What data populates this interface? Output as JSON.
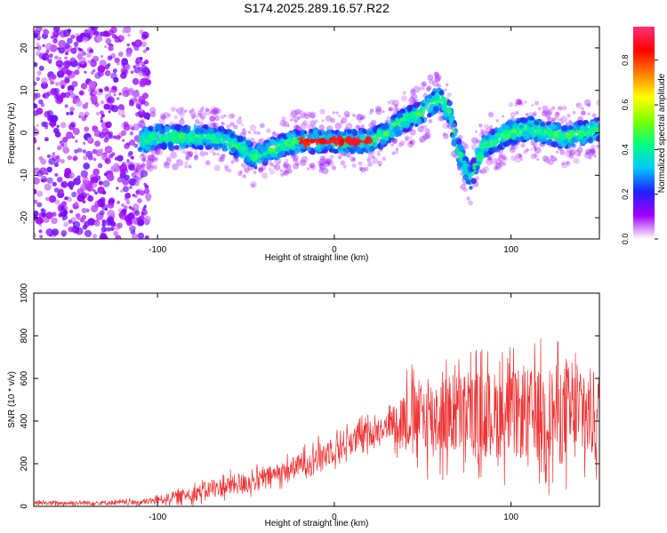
{
  "figure_title": "S174.2025.289.16.57.R22",
  "colors": {
    "signal_line": "#ee3333",
    "axis": "#000000",
    "background": "#ffffff",
    "colormap": [
      "#ffffff",
      "#a000ff",
      "#2020ff",
      "#00c8ff",
      "#00ff80",
      "#80ff00",
      "#ffff00",
      "#ff8000",
      "#ff0000",
      "#ff3377"
    ]
  },
  "chart_data": [
    {
      "type": "heatmap",
      "name": "spectrogram",
      "title": "S174.2025.289.16.57.R22",
      "xlabel": "Height of straight line (km)",
      "ylabel": "Frequency (Hz)",
      "xlim": [
        -170,
        150
      ],
      "ylim": [
        -25,
        25
      ],
      "xticks": [
        -100,
        0,
        100
      ],
      "yticks": [
        -20,
        -10,
        0,
        10,
        20
      ],
      "grid": false,
      "colorbar": {
        "label": "Normalized spectral amplitude",
        "range": [
          0.0,
          0.95
        ],
        "ticks": [
          0.0,
          0.2,
          0.4,
          0.6,
          0.8
        ],
        "tick_labels": [
          "0.0",
          "0.2",
          "0.4",
          "0.6",
          "0.8"
        ]
      },
      "ridge": {
        "x": [
          -110,
          -100,
          -90,
          -80,
          -70,
          -60,
          -50,
          -45,
          -40,
          -35,
          -30,
          -20,
          -10,
          0,
          10,
          20,
          25,
          30,
          35,
          40,
          45,
          50,
          55,
          60,
          65,
          70,
          75,
          78,
          80,
          85,
          90,
          95,
          100,
          110,
          120,
          130,
          140,
          150
        ],
        "y": [
          -2,
          -1,
          -1,
          -1,
          -1,
          -2,
          -4,
          -6,
          -5,
          -4,
          -3,
          -2,
          -2,
          -2,
          -2,
          -2,
          -1,
          0,
          2,
          3,
          4,
          5,
          7,
          8,
          5,
          -4,
          -9,
          -11,
          -7,
          -3,
          -2,
          -1,
          0,
          1,
          0,
          -1,
          0,
          1
        ],
        "peak_amplitude_region_km": [
          -20,
          20
        ]
      },
      "noise_region_km": [
        -170,
        -105
      ]
    },
    {
      "type": "line",
      "name": "snr",
      "title": "",
      "xlabel": "Height of straight line (km)",
      "ylabel": "SNR (10 * v/v)",
      "xlim": [
        -170,
        150
      ],
      "ylim": [
        0,
        1000
      ],
      "xticks": [
        -100,
        0,
        100
      ],
      "yticks": [
        0,
        200,
        400,
        600,
        800,
        1000
      ],
      "grid": false,
      "series": [
        {
          "name": "SNR",
          "color": "#ee3333",
          "envelope": {
            "x": [
              -170,
              -110,
              -100,
              -90,
              -80,
              -70,
              -60,
              -50,
              -40,
              -30,
              -20,
              -10,
              0,
              10,
              20,
              30,
              40,
              50,
              60,
              70,
              80,
              90,
              100,
              110,
              120,
              130,
              140,
              150
            ],
            "mean": [
              15,
              18,
              30,
              45,
              60,
              80,
              95,
              110,
              130,
              160,
              190,
              230,
              270,
              310,
              340,
              380,
              420,
              420,
              420,
              430,
              430,
              430,
              430,
              430,
              430,
              430,
              430,
              430
            ],
            "spread": [
              15,
              20,
              30,
              45,
              60,
              70,
              80,
              80,
              80,
              80,
              90,
              100,
              110,
              110,
              100,
              90,
              250,
              300,
              320,
              330,
              340,
              340,
              340,
              360,
              380,
              400,
              380,
              350
            ]
          }
        }
      ]
    }
  ]
}
